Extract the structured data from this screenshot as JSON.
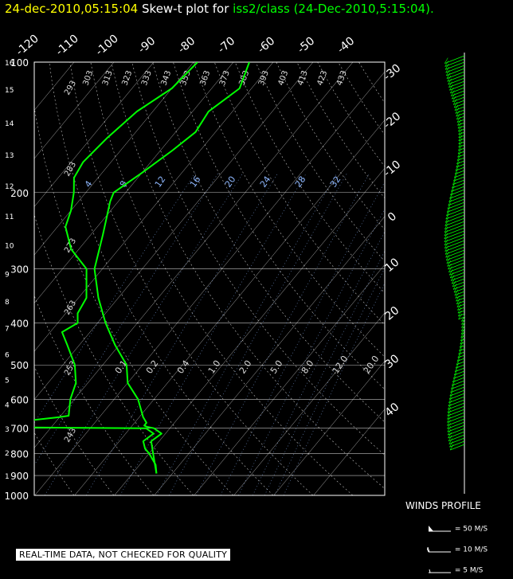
{
  "title": {
    "date_text": "24-dec-2010,05:15:04",
    "label_text": "Skew-t plot for",
    "source_text": "iss2/class (24-Dec-2010,5:15:04)."
  },
  "disclaimer": "REAL-TIME DATA, NOT CHECKED FOR QUALITY",
  "winds_profile_label": "WINDS PROFILE",
  "wind_legend": [
    {
      "label": "= 50 M/S"
    },
    {
      "label": "= 10 M/S"
    },
    {
      "label": "= 5 M/S"
    }
  ],
  "colors": {
    "background": "#000000",
    "trace": "#00ff00",
    "grid": "#ffffff",
    "title_date": "#ffff00",
    "mixing_ratio_labels": "#8fb8ff"
  },
  "chart_data": {
    "type": "line",
    "chart_kind": "skew-t log-p diagram",
    "y_axis_pressure_mb": {
      "scale": "log",
      "range": [
        1000,
        100
      ],
      "reversed": true,
      "ticks": [
        "100",
        "200",
        "300",
        "400",
        "500",
        "600",
        "700",
        "800",
        "900",
        "1000"
      ]
    },
    "y_axis_height_km": {
      "ticks": [
        "1",
        "2",
        "3",
        "4",
        "5",
        "6",
        "7",
        "8",
        "9",
        "10",
        "11",
        "12",
        "13",
        "14",
        "15",
        "16"
      ]
    },
    "temperature_ticks_top": [
      "-120",
      "-110",
      "-100",
      "-90",
      "-80",
      "-70",
      "-60",
      "-50",
      "-40"
    ],
    "temperature_ticks_right": [
      "-30",
      "-20",
      "-10",
      "0",
      "10",
      "20",
      "30",
      "40"
    ],
    "dry_adiabat_labels_left": [
      "293",
      "283",
      "273",
      "263",
      "253",
      "243"
    ],
    "dry_adiabat_labels_top": [
      "303",
      "313",
      "323",
      "333",
      "343",
      "353",
      "363",
      "373",
      "383",
      "393",
      "403",
      "413",
      "423",
      "433"
    ],
    "mixing_ratio_labels_200mb": [
      "4",
      "8",
      "12",
      "16",
      "20",
      "24",
      "28",
      "32"
    ],
    "mixing_ratio_labels_500mb": [
      "0.1",
      "0.2",
      "0.4",
      "1.0",
      "2.0",
      "5.0",
      "8.0",
      "12.0",
      "20.0"
    ],
    "series": [
      {
        "role": "temperature",
        "points": [
          [
            890,
            -4
          ],
          [
            800,
            -9
          ],
          [
            750,
            -12
          ],
          [
            720,
            -11
          ],
          [
            700,
            -14
          ],
          [
            695,
            -16
          ],
          [
            690,
            -17
          ],
          [
            680,
            -17
          ],
          [
            660,
            -19
          ],
          [
            600,
            -24
          ],
          [
            550,
            -30
          ],
          [
            500,
            -34
          ],
          [
            450,
            -41
          ],
          [
            400,
            -48
          ],
          [
            350,
            -55
          ],
          [
            300,
            -62
          ],
          [
            250,
            -67
          ],
          [
            210,
            -72
          ],
          [
            200,
            -73
          ],
          [
            180,
            -70
          ],
          [
            160,
            -67
          ],
          [
            145,
            -65
          ],
          [
            130,
            -66
          ],
          [
            115,
            -63
          ],
          [
            100,
            -66
          ]
        ]
      },
      {
        "role": "dewpoint",
        "points": [
          [
            890,
            -4
          ],
          [
            850,
            -6
          ],
          [
            800,
            -10
          ],
          [
            780,
            -12
          ],
          [
            750,
            -14
          ],
          [
            720,
            -13
          ],
          [
            700,
            -16
          ],
          [
            698,
            -35
          ],
          [
            695,
            -62
          ],
          [
            690,
            -60
          ],
          [
            685,
            -55
          ],
          [
            660,
            -40
          ],
          [
            655,
            -38
          ],
          [
            600,
            -41
          ],
          [
            550,
            -43
          ],
          [
            500,
            -47
          ],
          [
            450,
            -53
          ],
          [
            420,
            -57
          ],
          [
            400,
            -55
          ],
          [
            380,
            -57
          ],
          [
            350,
            -58
          ],
          [
            300,
            -64
          ],
          [
            270,
            -72
          ],
          [
            240,
            -78
          ],
          [
            220,
            -80
          ],
          [
            200,
            -83
          ],
          [
            185,
            -86
          ],
          [
            170,
            -87
          ],
          [
            150,
            -86
          ],
          [
            130,
            -84
          ],
          [
            115,
            -80
          ],
          [
            100,
            -79
          ]
        ]
      }
    ],
    "wind_profile": {
      "units": "M/S"
    }
  }
}
